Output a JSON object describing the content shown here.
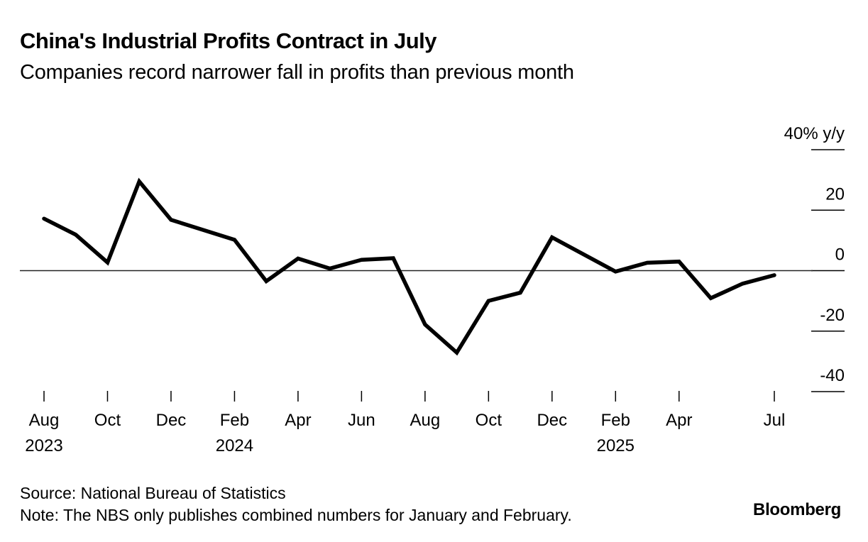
{
  "header": {
    "title": "China's Industrial Profits Contract in July",
    "subtitle": "Companies record narrower fall in profits than previous month"
  },
  "footer": {
    "source": "Source: National Bureau of Statistics",
    "note": "Note: The NBS only publishes combined numbers for January and February.",
    "brand": "Bloomberg"
  },
  "colors": {
    "line": "#000000",
    "zero_line": "#222222",
    "text": "#000000",
    "background": "#ffffff"
  },
  "chart_data": {
    "type": "line",
    "title": "China's Industrial Profits Contract in July",
    "subtitle": "Companies record narrower fall in profits than previous month",
    "xlabel": "",
    "ylabel": "% y/y",
    "ylim": [
      -40,
      40
    ],
    "yticks": [
      40,
      20,
      0,
      -20,
      -40
    ],
    "ytick_labels": [
      "40% y/y",
      "20",
      "0",
      "-20",
      "-40"
    ],
    "xticks": [
      {
        "date": "2023-08",
        "label": "Aug",
        "year": "2023"
      },
      {
        "date": "2023-10",
        "label": "Oct",
        "year": ""
      },
      {
        "date": "2023-12",
        "label": "Dec",
        "year": ""
      },
      {
        "date": "2024-02",
        "label": "Feb",
        "year": "2024"
      },
      {
        "date": "2024-04",
        "label": "Apr",
        "year": ""
      },
      {
        "date": "2024-06",
        "label": "Jun",
        "year": ""
      },
      {
        "date": "2024-08",
        "label": "Aug",
        "year": ""
      },
      {
        "date": "2024-10",
        "label": "Oct",
        "year": ""
      },
      {
        "date": "2024-12",
        "label": "Dec",
        "year": ""
      },
      {
        "date": "2025-02",
        "label": "Feb",
        "year": "2025"
      },
      {
        "date": "2025-04",
        "label": "Apr",
        "year": ""
      },
      {
        "date": "2025-07",
        "label": "Jul",
        "year": ""
      }
    ],
    "x_start": "2023-08",
    "x_end": "2025-07",
    "grid": false,
    "legend": "none",
    "series": [
      {
        "name": "Industrial profits",
        "points": [
          {
            "date": "2023-08",
            "value": 17.2
          },
          {
            "date": "2023-09",
            "value": 11.9
          },
          {
            "date": "2023-10",
            "value": 2.7
          },
          {
            "date": "2023-11",
            "value": 29.5
          },
          {
            "date": "2023-12",
            "value": 16.8
          },
          {
            "date": "2024-02",
            "value": 10.2
          },
          {
            "date": "2024-03",
            "value": -3.5
          },
          {
            "date": "2024-04",
            "value": 4.0
          },
          {
            "date": "2024-05",
            "value": 0.7
          },
          {
            "date": "2024-06",
            "value": 3.6
          },
          {
            "date": "2024-07",
            "value": 4.1
          },
          {
            "date": "2024-08",
            "value": -17.8
          },
          {
            "date": "2024-09",
            "value": -27.1
          },
          {
            "date": "2024-10",
            "value": -10.0
          },
          {
            "date": "2024-11",
            "value": -7.3
          },
          {
            "date": "2024-12",
            "value": 11.0
          },
          {
            "date": "2025-02",
            "value": -0.3
          },
          {
            "date": "2025-03",
            "value": 2.6
          },
          {
            "date": "2025-04",
            "value": 3.0
          },
          {
            "date": "2025-05",
            "value": -9.1
          },
          {
            "date": "2025-06",
            "value": -4.3
          },
          {
            "date": "2025-07",
            "value": -1.5
          }
        ]
      }
    ]
  }
}
